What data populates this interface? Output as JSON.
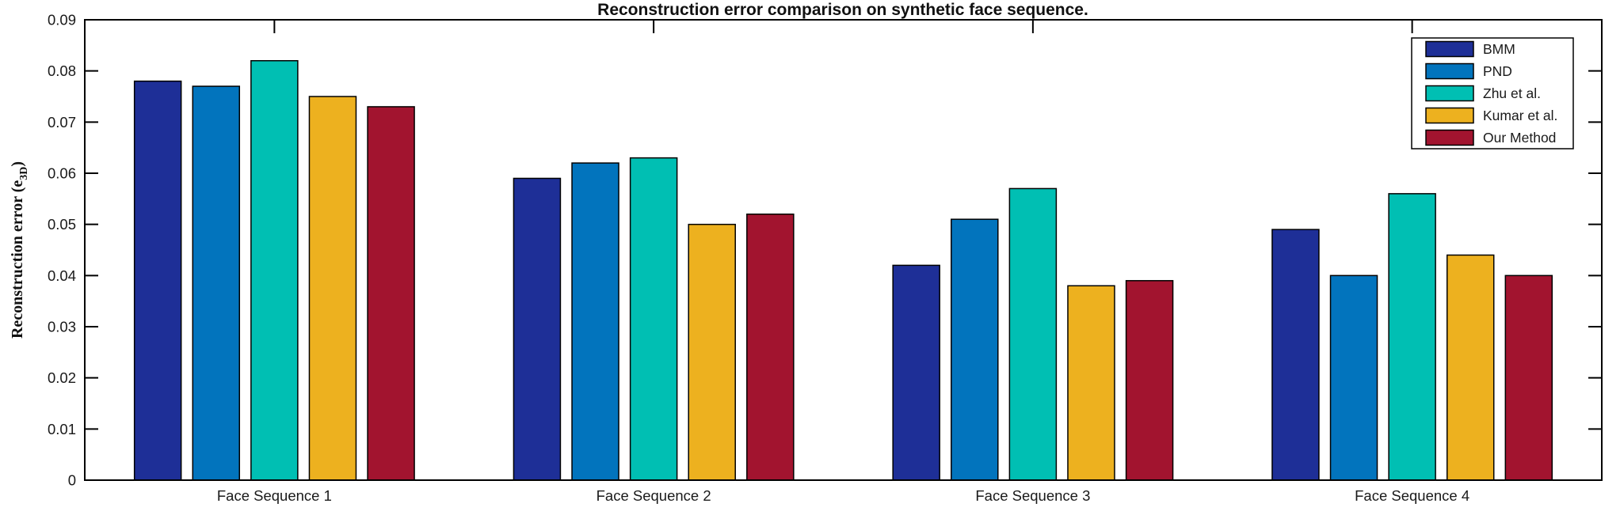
{
  "figure": {
    "background": "#ffffff",
    "text_color": "#1a1a1a",
    "axis_color": "#000000",
    "bar_edge_color": "#000000"
  },
  "chart_data": {
    "type": "bar",
    "title": "Reconstruction error comparison on synthetic face sequence.",
    "xlabel": "",
    "ylabel_parts": {
      "pre": "Reconstruction error (e",
      "sub": "3D",
      "post": ")"
    },
    "categories": [
      "Face Sequence 1",
      "Face Sequence 2",
      "Face Sequence 3",
      "Face Sequence 4"
    ],
    "series": [
      {
        "name": "BMM",
        "color": "#1e2f97",
        "values": [
          0.078,
          0.059,
          0.042,
          0.049
        ]
      },
      {
        "name": "PND",
        "color": "#0274bd",
        "values": [
          0.077,
          0.062,
          0.051,
          0.04
        ]
      },
      {
        "name": "Zhu et al.",
        "color": "#00bfb3",
        "values": [
          0.082,
          0.063,
          0.057,
          0.056
        ]
      },
      {
        "name": "Kumar et al.",
        "color": "#edb11f",
        "values": [
          0.075,
          0.05,
          0.038,
          0.044
        ]
      },
      {
        "name": "Our Method",
        "color": "#a2142f",
        "values": [
          0.073,
          0.052,
          0.039,
          0.04
        ]
      }
    ],
    "ylim": [
      0,
      0.09
    ],
    "yticks": [
      0,
      0.01,
      0.02,
      0.03,
      0.04,
      0.05,
      0.06,
      0.07,
      0.08,
      0.09
    ],
    "ytick_labels": [
      "0",
      "0.01",
      "0.02",
      "0.03",
      "0.04",
      "0.05",
      "0.06",
      "0.07",
      "0.08",
      "0.09"
    ],
    "grid": false,
    "box": true,
    "tick_direction": "in",
    "legend_position": "top-right"
  }
}
